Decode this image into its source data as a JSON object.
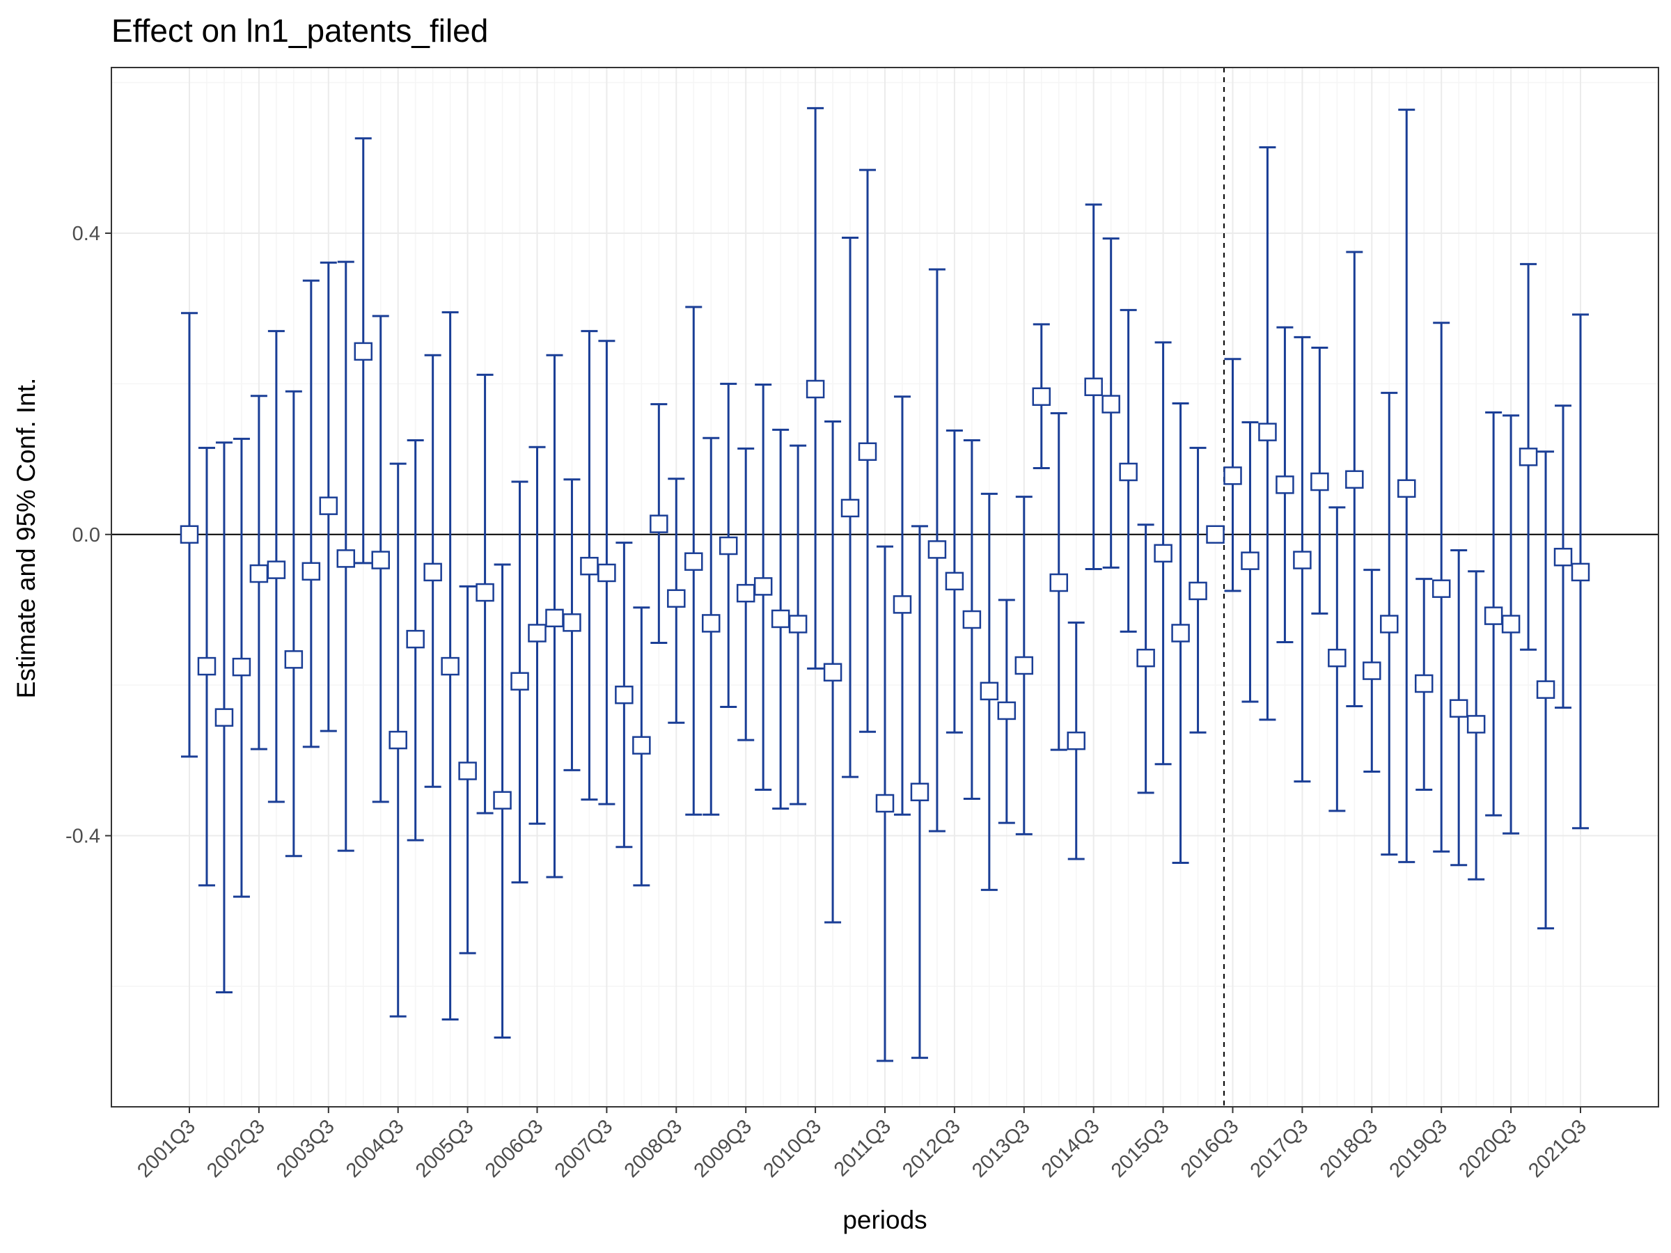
{
  "chart_data": {
    "type": "scatter",
    "title": "Effect on ln1_patents_filed",
    "xlabel": "periods",
    "ylabel": "Estimate and 95% Conf. Int.",
    "ylim": [
      -0.76,
      0.62
    ],
    "yticks": [
      -0.4,
      0.0,
      0.4
    ],
    "ytick_labels": [
      "-0.4",
      "0.0",
      "0.4"
    ],
    "xtick_labels": [
      "2001Q3",
      "2002Q3",
      "2003Q3",
      "2004Q3",
      "2005Q3",
      "2006Q3",
      "2007Q3",
      "2008Q3",
      "2009Q3",
      "2010Q3",
      "2011Q3",
      "2012Q3",
      "2013Q3",
      "2014Q3",
      "2015Q3",
      "2016Q3",
      "2017Q3",
      "2018Q3",
      "2019Q3",
      "2020Q3",
      "2021Q3"
    ],
    "first_period": "2001Q3",
    "last_period": "2021Q3",
    "reference_line": {
      "y": 0.0,
      "style": "solid"
    },
    "event_line": {
      "x": "2016Q2",
      "style": "dashed"
    },
    "grid": true,
    "marker": "open-square",
    "colors": {
      "series": "#1a3e96",
      "zero_line": "#000000",
      "event_line": "#000000",
      "grid_major": "#ebebeb",
      "grid_minor": "#f5f5f5",
      "panel_border": "#333333"
    },
    "series": [
      {
        "estimate": [
          0.0,
          -0.175,
          -0.243,
          -0.176,
          -0.052,
          -0.047,
          -0.166,
          -0.049,
          0.038,
          -0.032,
          0.243,
          -0.034,
          -0.273,
          -0.139,
          -0.05,
          -0.175,
          -0.314,
          -0.077,
          -0.353,
          -0.195,
          -0.131,
          -0.111,
          -0.117,
          -0.042,
          -0.051,
          -0.213,
          -0.28,
          0.014,
          -0.085,
          -0.036,
          -0.118,
          -0.015,
          -0.078,
          -0.069,
          -0.112,
          -0.119,
          0.193,
          -0.183,
          0.035,
          0.11,
          -0.357,
          -0.093,
          -0.342,
          -0.02,
          -0.062,
          -0.113,
          -0.208,
          -0.234,
          -0.174,
          0.183,
          -0.064,
          -0.274,
          0.196,
          0.173,
          0.083,
          -0.164,
          -0.025,
          -0.131,
          -0.075,
          0.0,
          0.078,
          -0.035,
          0.136,
          0.066,
          -0.034,
          0.07,
          -0.164,
          0.073,
          -0.181,
          -0.119,
          0.061,
          -0.198,
          -0.072,
          -0.231,
          -0.252,
          -0.108,
          -0.119,
          0.103,
          -0.206,
          -0.03,
          -0.05
        ],
        "ci_low": [
          -0.295,
          -0.466,
          -0.608,
          -0.481,
          -0.285,
          -0.355,
          -0.427,
          -0.282,
          -0.261,
          -0.42,
          -0.038,
          -0.355,
          -0.64,
          -0.406,
          -0.335,
          -0.644,
          -0.556,
          -0.37,
          -0.668,
          -0.462,
          -0.384,
          -0.455,
          -0.313,
          -0.352,
          -0.358,
          -0.415,
          -0.466,
          -0.144,
          -0.25,
          -0.372,
          -0.372,
          -0.229,
          -0.273,
          -0.339,
          -0.364,
          -0.358,
          -0.178,
          -0.515,
          -0.322,
          -0.262,
          -0.699,
          -0.372,
          -0.695,
          -0.394,
          -0.263,
          -0.351,
          -0.472,
          -0.383,
          -0.398,
          0.088,
          -0.286,
          -0.431,
          -0.046,
          -0.044,
          -0.129,
          -0.343,
          -0.305,
          -0.436,
          -0.263,
          0.0,
          -0.075,
          -0.222,
          -0.246,
          -0.143,
          -0.328,
          -0.105,
          -0.367,
          -0.228,
          -0.315,
          -0.425,
          -0.435,
          -0.339,
          -0.421,
          -0.439,
          -0.458,
          -0.373,
          -0.397,
          -0.153,
          -0.523,
          -0.23,
          -0.39
        ],
        "ci_high": [
          0.294,
          0.115,
          0.122,
          0.127,
          0.184,
          0.27,
          0.19,
          0.337,
          0.361,
          0.362,
          0.526,
          0.29,
          0.094,
          0.125,
          0.238,
          0.295,
          -0.069,
          0.212,
          -0.04,
          0.07,
          0.116,
          0.238,
          0.073,
          0.27,
          0.257,
          -0.011,
          -0.097,
          0.173,
          0.074,
          0.302,
          0.128,
          0.2,
          0.114,
          0.199,
          0.139,
          0.118,
          0.566,
          0.15,
          0.394,
          0.484,
          -0.016,
          0.183,
          0.011,
          0.352,
          0.138,
          0.125,
          0.054,
          -0.087,
          0.05,
          0.279,
          0.161,
          -0.117,
          0.438,
          0.393,
          0.298,
          0.013,
          0.255,
          0.174,
          0.115,
          0.0,
          0.233,
          0.149,
          0.514,
          0.275,
          0.262,
          0.248,
          0.036,
          0.375,
          -0.047,
          0.188,
          0.564,
          -0.059,
          0.281,
          -0.021,
          -0.049,
          0.162,
          0.158,
          0.359,
          0.11,
          0.171,
          0.292
        ]
      }
    ]
  }
}
